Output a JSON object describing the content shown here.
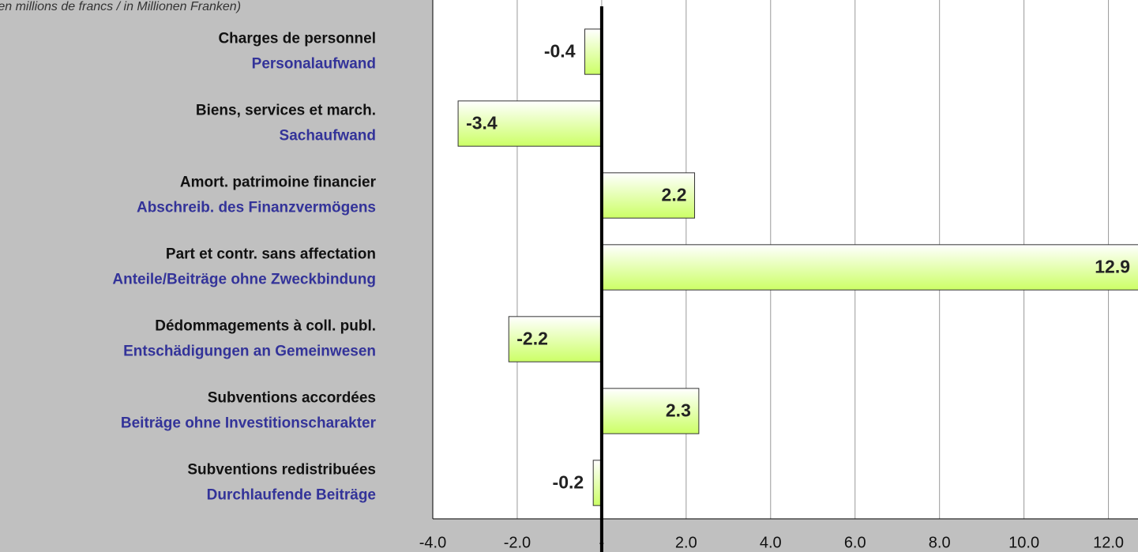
{
  "chart_data": {
    "type": "barh",
    "title": "(en millions de francs / in Millionen Franken)",
    "categories": [
      [
        "Charges de personnel",
        "Personalaufwand"
      ],
      [
        "Biens, services et march.",
        "Sachaufwand"
      ],
      [
        "Amort. patrimoine financier",
        "Abschreib. des Finanzvermögens"
      ],
      [
        "Part et contr. sans affectation",
        "Anteile/Beiträge ohne Zweckbindung"
      ],
      [
        "Dédommagements à coll. publ.",
        "Entschädigungen an Gemeinwesen"
      ],
      [
        "Subventions accordées",
        "Beiträge ohne Investitionscharakter"
      ],
      [
        "Subventions redistribuées",
        "Durchlaufende Beiträge"
      ]
    ],
    "values": [
      -0.4,
      -3.4,
      2.2,
      12.9,
      -2.2,
      2.3,
      -0.2
    ],
    "color": "#ccff66",
    "xlim": [
      -4,
      12.7
    ],
    "xticks": [
      {
        "value": -4,
        "label": "-4.0"
      },
      {
        "value": -2,
        "label": "-2.0"
      },
      {
        "value": 0,
        "label": "-"
      },
      {
        "value": 2,
        "label": "2.0"
      },
      {
        "value": 4,
        "label": "4.0"
      },
      {
        "value": 6,
        "label": "6.0"
      },
      {
        "value": 8,
        "label": "8.0"
      },
      {
        "value": 10,
        "label": "10.0"
      },
      {
        "value": 12,
        "label": "12.0"
      }
    ],
    "grid": true
  }
}
